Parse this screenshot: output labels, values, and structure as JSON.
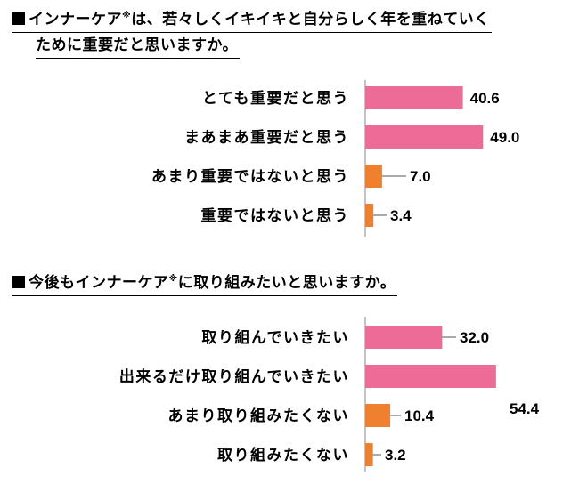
{
  "colors": {
    "pink": "#EC6B97",
    "orange": "#EE8030",
    "axis": "#888888",
    "leader": "#555555"
  },
  "questions": [
    {
      "prefix": "■",
      "line1_a": "インナーケア",
      "mark": "※",
      "line1_b": "は、若々しくイキイキと自分らしく年を重ねていく",
      "line2": "ために重要だと思いますか。"
    },
    {
      "prefix": "■",
      "line1_a": "今後もインナーケア",
      "mark": "※",
      "line1_b": "に取り組みたいと思いますか。"
    }
  ],
  "chart_data": [
    {
      "type": "bar",
      "orientation": "horizontal",
      "categories": [
        "とても重要だと思う",
        "まあまあ重要だと思う",
        "あまり重要ではないと思う",
        "重要ではないと思う"
      ],
      "values": [
        40.6,
        49.0,
        7.0,
        3.4
      ],
      "value_labels": [
        "40.6",
        "49.0",
        "7.0",
        "3.4"
      ],
      "bar_colors": [
        "#EC6B97",
        "#EC6B97",
        "#EE8030",
        "#EE8030"
      ]
    },
    {
      "type": "bar",
      "orientation": "horizontal",
      "categories": [
        "取り組んでいきたい",
        "出来るだけ取り組んでいきたい",
        "あまり取り組みたくない",
        "取り組みたくない"
      ],
      "values": [
        32.0,
        54.4,
        10.4,
        3.2
      ],
      "value_labels": [
        "32.0",
        "54.4",
        "10.4",
        "3.2"
      ],
      "bar_colors": [
        "#EC6B97",
        "#EC6B97",
        "#EE8030",
        "#EE8030"
      ]
    }
  ]
}
